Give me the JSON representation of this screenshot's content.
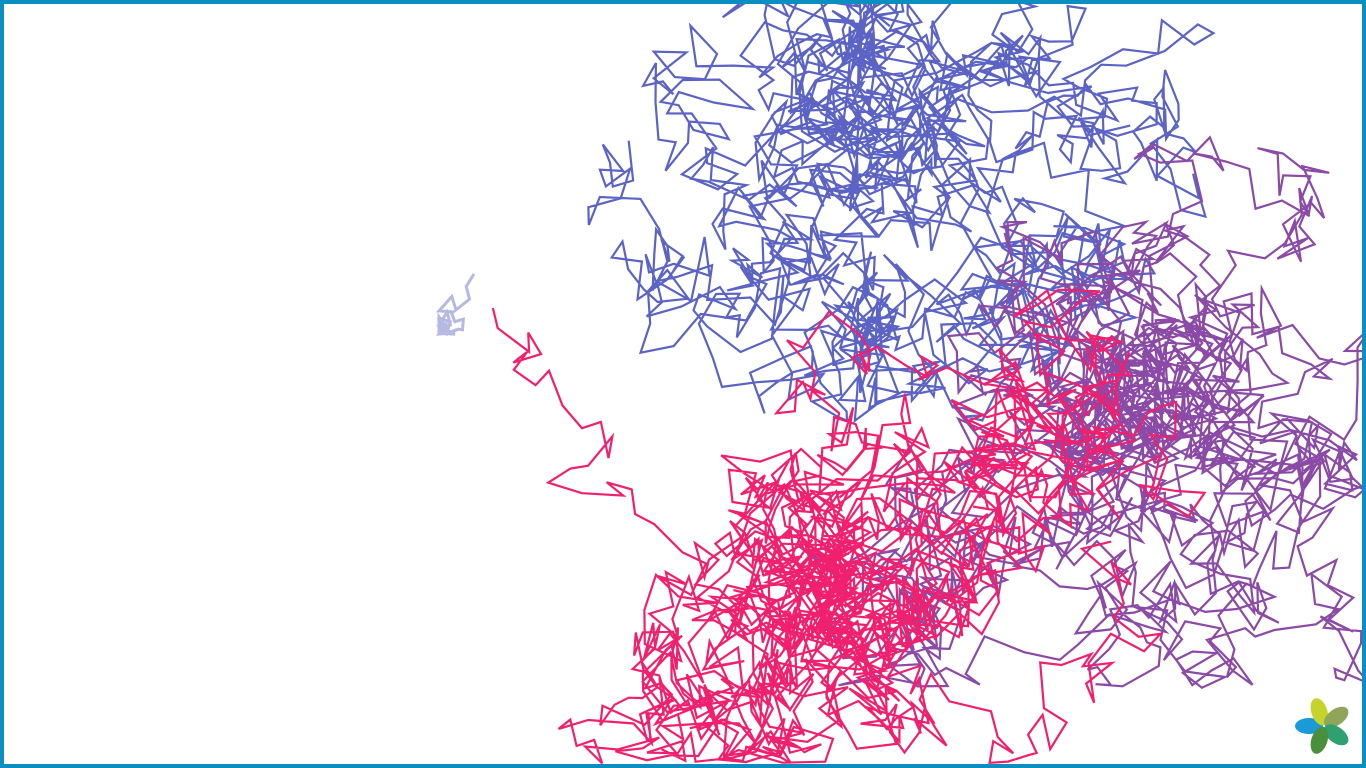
{
  "canvas": {
    "background": "#ffffff",
    "border_color": "#0a8fc0"
  },
  "walks": [
    {
      "name": "blue-walk",
      "color": "#5b63c4",
      "seed": 17,
      "steps": 1300,
      "start": [
        0.46,
        0.18
      ],
      "spread": [
        0.36,
        0.3
      ],
      "center": [
        0.62,
        0.25
      ]
    },
    {
      "name": "purple-walk",
      "color": "#8a4aa6",
      "seed": 91,
      "steps": 1300,
      "start": [
        0.8,
        0.45
      ],
      "spread": [
        0.3,
        0.35
      ],
      "center": [
        0.8,
        0.55
      ]
    },
    {
      "name": "pink-walk",
      "color": "#f0206e",
      "seed": 53,
      "steps": 1400,
      "start": [
        0.36,
        0.4
      ],
      "spread": [
        0.38,
        0.3
      ],
      "center": [
        0.7,
        0.7
      ]
    }
  ],
  "cursor_trail": {
    "color": "#5b63c4",
    "opacity": 0.45
  },
  "logo": {
    "icon": "flower-logo-icon",
    "petal_colors": [
      "#1a9ad6",
      "#c6d32a",
      "#8fa65a",
      "#2fa06f",
      "#4a8f3c"
    ]
  }
}
